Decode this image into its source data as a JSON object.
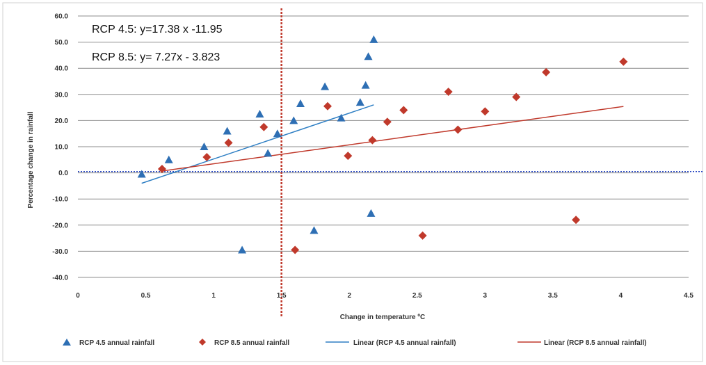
{
  "chart_data": {
    "type": "scatter",
    "xlabel": "Change in temperature ºC",
    "ylabel": "Percentage change in rainfall",
    "xlim": [
      0,
      4.5
    ],
    "ylim": [
      -40,
      60
    ],
    "x_ticks": [
      "0",
      "0.5",
      "1",
      "1.5",
      "2",
      "2.5",
      "3",
      "3.5",
      "4",
      "4.5"
    ],
    "y_ticks": [
      "60.0",
      "50.0",
      "40.0",
      "30.0",
      "20.0",
      "10.0",
      "0.0",
      "-10.0",
      "-20.0",
      "-30.0",
      "-40.0"
    ],
    "x_tick_values": [
      0,
      0.5,
      1,
      1.5,
      2,
      2.5,
      3,
      3.5,
      4,
      4.5
    ],
    "y_tick_values": [
      60,
      50,
      40,
      30,
      20,
      10,
      0,
      -10,
      -20,
      -30,
      -40
    ],
    "grid": "horizontal",
    "reference_lines": [
      {
        "orientation": "vertical",
        "value": 1.5,
        "color": "#c0392b",
        "style": "dotted"
      },
      {
        "orientation": "horizontal",
        "value": 0.5,
        "color": "#1f3fbf",
        "style": "dotted"
      }
    ],
    "annotations": [
      "RCP 4.5: y=17.38 x -11.95",
      "RCP 8.5: y= 7.27x - 3.823"
    ],
    "series": [
      {
        "name": "RCP 4.5 annual rainfall",
        "marker": "triangle",
        "color": "#2e6fb4",
        "points": [
          [
            0.47,
            -0.5
          ],
          [
            0.67,
            5
          ],
          [
            0.93,
            10
          ],
          [
            1.1,
            16
          ],
          [
            1.21,
            -29.5
          ],
          [
            1.34,
            22.5
          ],
          [
            1.4,
            7.5
          ],
          [
            1.47,
            15
          ],
          [
            1.59,
            20
          ],
          [
            1.64,
            26.5
          ],
          [
            1.74,
            -22
          ],
          [
            1.82,
            33
          ],
          [
            1.94,
            21
          ],
          [
            2.08,
            27
          ],
          [
            2.12,
            33.5
          ],
          [
            2.14,
            44.5
          ],
          [
            2.16,
            -15.5
          ],
          [
            2.18,
            51
          ]
        ]
      },
      {
        "name": "RCP 8.5 annual rainfall",
        "marker": "diamond",
        "color": "#c0392b",
        "points": [
          [
            0.62,
            1.5
          ],
          [
            0.95,
            6
          ],
          [
            1.11,
            11.5
          ],
          [
            1.37,
            17.5
          ],
          [
            1.6,
            -29.5
          ],
          [
            1.84,
            25.5
          ],
          [
            1.99,
            6.5
          ],
          [
            2.17,
            12.5
          ],
          [
            2.28,
            19.5
          ],
          [
            2.4,
            24
          ],
          [
            2.54,
            -24
          ],
          [
            2.73,
            31
          ],
          [
            2.8,
            16.5
          ],
          [
            3.0,
            23.5
          ],
          [
            3.23,
            29
          ],
          [
            3.45,
            38.5
          ],
          [
            3.67,
            -18
          ],
          [
            4.02,
            42.5
          ]
        ]
      },
      {
        "name": "Linear (RCP 4.5 annual rainfall)",
        "type": "line",
        "color": "#2e7fc4",
        "x": [
          0.47,
          2.18
        ],
        "y": [
          -4,
          26
        ]
      },
      {
        "name": "Linear (RCP 8.5 annual rainfall)",
        "type": "line",
        "color": "#c0392b",
        "x": [
          0.62,
          4.02
        ],
        "y": [
          0.7,
          25.4
        ]
      }
    ],
    "legend_position": "bottom"
  }
}
